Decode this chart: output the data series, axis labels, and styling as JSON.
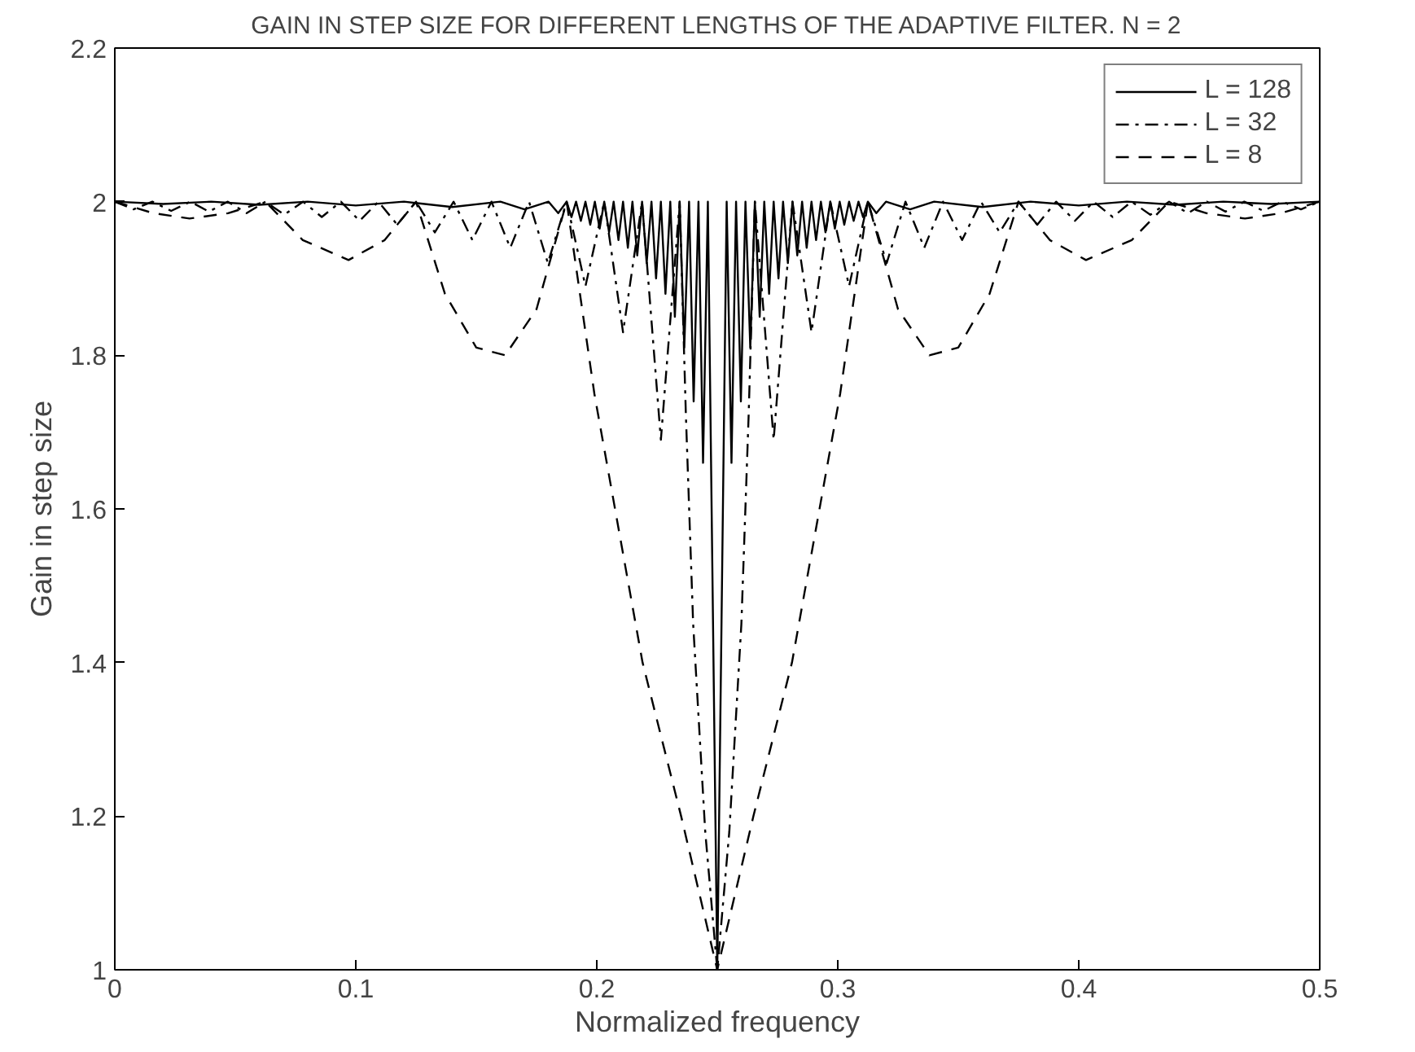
{
  "chart_data": {
    "type": "line",
    "title": "GAIN IN STEP SIZE FOR DIFFERENT LENGTHS OF THE ADAPTIVE FILTER. N = 2",
    "xlabel": "Normalized frequency",
    "ylabel": "Gain in step size",
    "xlim": [
      0,
      0.5
    ],
    "ylim": [
      1,
      2.2
    ],
    "xticks": [
      0,
      0.1,
      0.2,
      0.3,
      0.4,
      0.5
    ],
    "yticks": [
      1,
      1.2,
      1.4,
      1.6,
      1.8,
      2,
      2.2
    ],
    "grid": false,
    "legend": "top right",
    "marker": "none",
    "series": [
      {
        "name": "L = 128",
        "color": "#000000",
        "line_style": "solid",
        "x": [
          0,
          0.02,
          0.04,
          0.06,
          0.08,
          0.1,
          0.12,
          0.14,
          0.16,
          0.17,
          0.18,
          0.184,
          0.1875,
          0.1895,
          0.1914,
          0.1934,
          0.1953,
          0.1973,
          0.1992,
          0.2012,
          0.2031,
          0.2051,
          0.207,
          0.209,
          0.2109,
          0.2129,
          0.2148,
          0.2168,
          0.2188,
          0.2207,
          0.2227,
          0.2246,
          0.2266,
          0.2285,
          0.2305,
          0.2324,
          0.2344,
          0.2363,
          0.2383,
          0.2402,
          0.2422,
          0.2441,
          0.2461,
          0.25,
          0.2539,
          0.2559,
          0.2578,
          0.2598,
          0.2617,
          0.2637,
          0.2656,
          0.2676,
          0.2695,
          0.2715,
          0.2734,
          0.2754,
          0.2773,
          0.2793,
          0.2812,
          0.2832,
          0.2852,
          0.2871,
          0.2891,
          0.291,
          0.293,
          0.2949,
          0.2969,
          0.2988,
          0.3008,
          0.3027,
          0.3047,
          0.3066,
          0.3086,
          0.3105,
          0.3125,
          0.316,
          0.32,
          0.33,
          0.34,
          0.36,
          0.38,
          0.4,
          0.42,
          0.44,
          0.46,
          0.48,
          0.5
        ],
        "values": [
          2,
          1.997,
          2,
          1.996,
          2,
          1.995,
          2,
          1.993,
          2,
          1.99,
          2,
          1.985,
          2,
          1.98,
          2,
          1.975,
          2,
          1.97,
          2,
          1.965,
          2,
          1.96,
          2,
          1.95,
          2,
          1.94,
          2,
          1.93,
          2,
          1.92,
          2,
          1.9,
          2,
          1.88,
          2,
          1.85,
          2,
          1.81,
          2,
          1.74,
          2,
          1.66,
          2,
          1,
          2,
          1.66,
          2,
          1.74,
          2,
          1.81,
          2,
          1.85,
          2,
          1.88,
          2,
          1.9,
          2,
          1.92,
          2,
          1.93,
          2,
          1.94,
          2,
          1.95,
          2,
          1.96,
          2,
          1.965,
          2,
          1.97,
          2,
          1.975,
          2,
          1.98,
          2,
          1.985,
          2,
          1.99,
          2,
          1.993,
          2,
          1.995,
          2,
          1.996,
          2,
          1.997,
          2
        ]
      },
      {
        "name": "L = 32",
        "color": "#000000",
        "line_style": "dashdot",
        "x": [
          0,
          0.0078,
          0.0156,
          0.0234,
          0.0313,
          0.0391,
          0.0469,
          0.0547,
          0.0625,
          0.0703,
          0.0781,
          0.0859,
          0.0938,
          0.1016,
          0.1094,
          0.1172,
          0.125,
          0.1328,
          0.1406,
          0.1484,
          0.1563,
          0.1641,
          0.1719,
          0.1797,
          0.1875,
          0.1953,
          0.2031,
          0.2109,
          0.2188,
          0.2266,
          0.2344,
          0.237,
          0.24,
          0.245,
          0.25,
          0.255,
          0.26,
          0.263,
          0.2656,
          0.2734,
          0.2812,
          0.2891,
          0.2969,
          0.3047,
          0.3125,
          0.3203,
          0.3281,
          0.3359,
          0.3437,
          0.3516,
          0.3594,
          0.3672,
          0.375,
          0.3828,
          0.3906,
          0.3984,
          0.4062,
          0.4141,
          0.4219,
          0.4297,
          0.4375,
          0.4453,
          0.4531,
          0.4609,
          0.4687,
          0.4766,
          0.4844,
          0.4922,
          0.5
        ],
        "values": [
          2,
          1.99,
          2,
          1.988,
          2,
          1.987,
          2,
          1.985,
          2,
          1.983,
          2,
          1.98,
          2,
          1.975,
          2,
          1.97,
          2,
          1.96,
          2,
          1.95,
          2,
          1.94,
          2,
          1.92,
          2,
          1.89,
          2,
          1.83,
          2,
          1.69,
          2,
          1.72,
          1.45,
          1.18,
          1,
          1.18,
          1.45,
          1.72,
          2,
          1.69,
          2,
          1.83,
          2,
          1.89,
          2,
          1.92,
          2,
          1.94,
          2,
          1.95,
          2,
          1.96,
          2,
          1.97,
          2,
          1.975,
          2,
          1.98,
          2,
          1.983,
          2,
          1.985,
          2,
          1.987,
          2,
          1.988,
          2,
          1.99,
          2
        ]
      },
      {
        "name": "L = 8",
        "color": "#000000",
        "line_style": "dashed",
        "x": [
          0,
          0.016,
          0.031,
          0.047,
          0.0625,
          0.078,
          0.097,
          0.112,
          0.125,
          0.137,
          0.15,
          0.162,
          0.175,
          0.1875,
          0.199,
          0.219,
          0.235,
          0.25,
          0.265,
          0.281,
          0.301,
          0.3125,
          0.325,
          0.338,
          0.35,
          0.363,
          0.375,
          0.388,
          0.403,
          0.422,
          0.4375,
          0.453,
          0.469,
          0.484,
          0.5
        ],
        "values": [
          2,
          1.985,
          1.978,
          1.985,
          2,
          1.95,
          1.924,
          1.95,
          2,
          1.88,
          1.81,
          1.8,
          1.86,
          2,
          1.75,
          1.4,
          1.2,
          1,
          1.2,
          1.4,
          1.75,
          2,
          1.86,
          1.8,
          1.81,
          1.88,
          2,
          1.95,
          1.924,
          1.95,
          2,
          1.985,
          1.978,
          1.985,
          2
        ]
      }
    ]
  }
}
